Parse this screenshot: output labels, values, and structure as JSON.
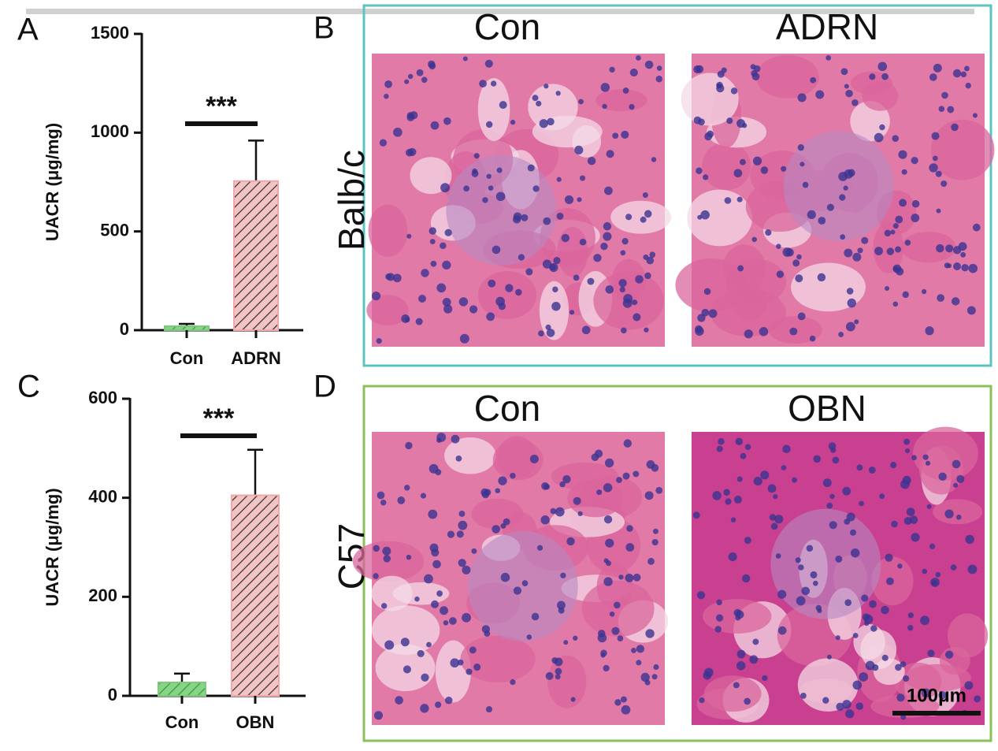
{
  "chart_data": [
    {
      "type": "bar",
      "panel": "A",
      "ylabel": "UACR (μg/mg)",
      "categories": [
        "Con",
        "ADRN"
      ],
      "values": [
        20,
        755
      ],
      "errors": [
        12,
        205
      ],
      "colors": [
        "#86d486",
        "#f4c4c4"
      ],
      "ylim": [
        0,
        1500
      ],
      "yticks": [
        0,
        500,
        1000,
        1500
      ],
      "significance": "***"
    },
    {
      "type": "bar",
      "panel": "C",
      "ylabel": "UACR (μg/mg)",
      "categories": [
        "Con",
        "OBN"
      ],
      "values": [
        27,
        405
      ],
      "errors": [
        18,
        92
      ],
      "colors": [
        "#86d486",
        "#f4c4c4"
      ],
      "ylim": [
        0,
        600
      ],
      "yticks": [
        0,
        200,
        400,
        600
      ],
      "significance": "***"
    }
  ],
  "histology": [
    {
      "panel": "B",
      "strain": "Balb/c",
      "columns": [
        "Con",
        "ADRN"
      ]
    },
    {
      "panel": "D",
      "strain": "C57",
      "columns": [
        "Con",
        "OBN"
      ],
      "scale_bar": "100μm"
    }
  ]
}
